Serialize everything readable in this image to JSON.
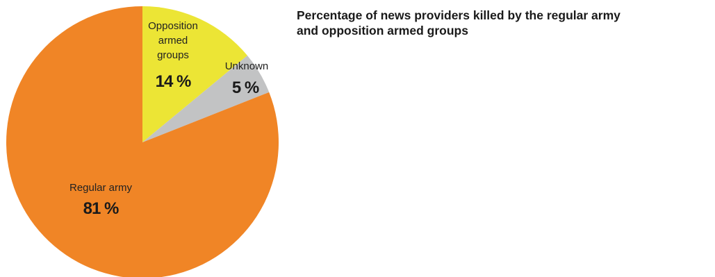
{
  "chart_data": {
    "type": "pie",
    "title": "Percentage of news providers killed by the regular army and opposition armed groups",
    "title_lines": [
      "Percentage of news providers killed by the regular army",
      "and opposition armed groups"
    ],
    "slices": [
      {
        "label": "Opposition armed groups",
        "label_lines": [
          "Opposition",
          "armed",
          "groups"
        ],
        "value": 14,
        "display": "14 %",
        "color": "#ECE535"
      },
      {
        "label": "Unknown",
        "label_lines": [
          "Unknown"
        ],
        "value": 5,
        "display": "5 %",
        "color": "#C2C3C4"
      },
      {
        "label": "Regular army",
        "label_lines": [
          "Regular army"
        ],
        "value": 81,
        "display": "81 %",
        "color": "#F08526"
      }
    ],
    "start_angle": "12 o'clock",
    "direction": "clockwise",
    "legend": "none"
  }
}
